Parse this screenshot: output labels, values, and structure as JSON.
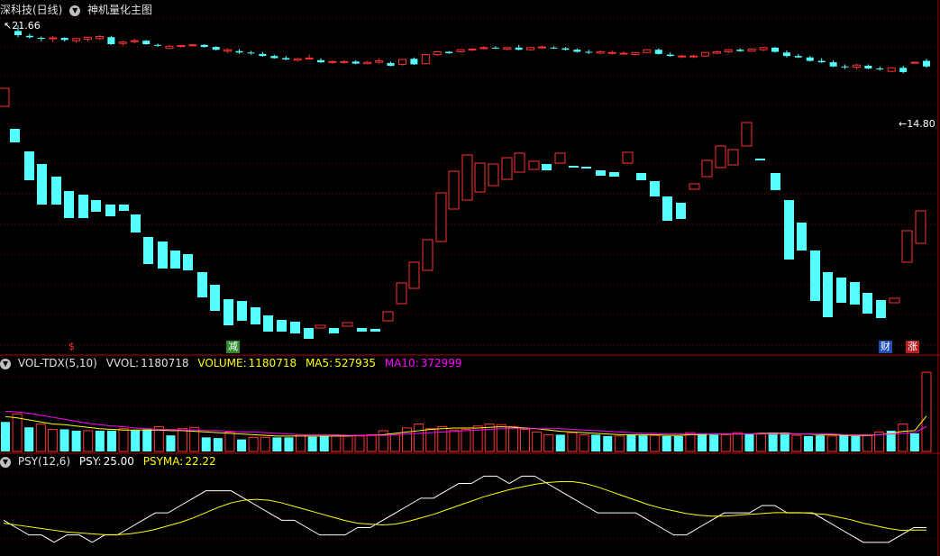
{
  "header": {
    "title": "深科技(日线)",
    "indicator": "神机量化主图"
  },
  "price_labels": {
    "high": "21.66",
    "low": "14.80"
  },
  "markers": {
    "m1": "$",
    "m2": "减",
    "m3": "财",
    "m4": "涨"
  },
  "vol_header": {
    "name": "VOL-TDX(5,10)",
    "vvol_label": "VVOL:",
    "vvol_value": "1180718",
    "volume_label": "VOLUME:",
    "volume_value": "1180718",
    "ma5_label": "MA5:",
    "ma5_value": "527935",
    "ma10_label": "MA10:",
    "ma10_value": "372999"
  },
  "psy_header": {
    "name": "PSY(12,6)",
    "psy_label": "PSY:",
    "psy_value": "25.00",
    "psyma_label": "PSYMA:",
    "psyma_value": "22.22"
  },
  "colors": {
    "up": "#ff3232",
    "down": "#54ffff",
    "grid": "#7a0000",
    "ma5": "#ffff00",
    "ma10": "#ff00ff",
    "psy": "#ffffff",
    "psyma": "#ffff00"
  },
  "chart_data": [
    {
      "type": "candlestick",
      "title": "深科技(日线)",
      "price_range": [
        14.8,
        21.66
      ],
      "candles": [
        [
          21.25,
          21.66,
          20.8,
          20.95
        ],
        [
          20.9,
          21.05,
          20.7,
          20.8
        ],
        [
          20.75,
          20.85,
          20.5,
          20.7
        ],
        [
          20.7,
          20.9,
          20.45,
          20.75
        ],
        [
          20.75,
          20.8,
          20.5,
          20.6
        ],
        [
          20.55,
          20.75,
          20.4,
          20.7
        ],
        [
          20.65,
          20.8,
          20.5,
          20.8
        ],
        [
          20.7,
          20.95,
          20.6,
          20.85
        ],
        [
          20.8,
          20.9,
          20.25,
          20.3
        ],
        [
          20.35,
          20.55,
          20.2,
          20.45
        ],
        [
          20.5,
          20.7,
          20.35,
          20.55
        ],
        [
          20.55,
          20.6,
          20.25,
          20.3
        ],
        [
          20.25,
          20.35,
          20.1,
          20.2
        ],
        [
          20.0,
          20.25,
          19.95,
          20.15
        ],
        [
          20.15,
          20.25,
          20.05,
          20.2
        ],
        [
          20.2,
          20.3,
          20.15,
          20.25
        ],
        [
          20.25,
          20.3,
          20.05,
          20.1
        ],
        [
          20.1,
          20.15,
          19.85,
          19.9
        ],
        [
          19.8,
          20.0,
          19.65,
          19.9
        ],
        [
          19.8,
          19.95,
          19.6,
          19.7
        ],
        [
          19.7,
          19.8,
          19.55,
          19.65
        ],
        [
          19.6,
          19.75,
          19.4,
          19.45
        ],
        [
          19.45,
          19.55,
          19.25,
          19.3
        ],
        [
          19.3,
          19.45,
          19.15,
          19.2
        ],
        [
          19.15,
          19.3,
          19.05,
          19.25
        ],
        [
          19.25,
          19.55,
          19.2,
          19.3
        ],
        [
          19.15,
          19.3,
          18.95,
          19.0
        ],
        [
          19.0,
          19.15,
          18.9,
          19.05
        ],
        [
          19.0,
          19.15,
          18.9,
          19.05
        ],
        [
          19.05,
          19.15,
          18.85,
          18.9
        ],
        [
          18.9,
          19.1,
          18.85,
          19.0
        ],
        [
          19.0,
          19.3,
          18.9,
          19.1
        ],
        [
          18.95,
          19.05,
          18.7,
          18.75
        ],
        [
          18.85,
          19.25,
          18.75,
          19.2
        ],
        [
          19.25,
          19.35,
          18.8,
          18.85
        ],
        [
          18.9,
          19.6,
          18.85,
          19.55
        ],
        [
          19.55,
          19.8,
          19.45,
          19.75
        ],
        [
          19.75,
          19.8,
          19.6,
          19.65
        ],
        [
          19.75,
          19.95,
          19.7,
          19.9
        ],
        [
          19.9,
          20.0,
          19.8,
          19.95
        ],
        [
          20.0,
          20.15,
          19.9,
          20.05
        ],
        [
          20.05,
          20.15,
          19.95,
          20.0
        ],
        [
          19.95,
          20.1,
          19.85,
          20.05
        ],
        [
          20.05,
          20.25,
          19.85,
          19.9
        ],
        [
          19.9,
          20.1,
          19.85,
          20.05
        ],
        [
          20.05,
          20.2,
          19.95,
          20.1
        ],
        [
          20.05,
          20.15,
          19.95,
          20.0
        ],
        [
          20.0,
          20.1,
          19.85,
          19.9
        ],
        [
          19.9,
          20.0,
          19.7,
          19.75
        ],
        [
          19.75,
          19.9,
          19.6,
          19.7
        ],
        [
          19.65,
          19.85,
          19.6,
          19.75
        ],
        [
          19.7,
          19.85,
          19.55,
          19.7
        ],
        [
          19.6,
          19.8,
          19.55,
          19.65
        ],
        [
          19.55,
          19.75,
          19.5,
          19.7
        ],
        [
          19.7,
          19.95,
          19.65,
          19.9
        ],
        [
          19.9,
          20.0,
          19.55,
          19.6
        ],
        [
          19.55,
          19.7,
          19.4,
          19.45
        ],
        [
          19.4,
          19.55,
          19.3,
          19.45
        ],
        [
          19.4,
          19.55,
          19.3,
          19.45
        ],
        [
          19.45,
          19.75,
          19.4,
          19.7
        ],
        [
          19.65,
          19.85,
          19.6,
          19.75
        ],
        [
          19.75,
          19.95,
          19.65,
          19.9
        ],
        [
          19.9,
          20.0,
          19.75,
          19.8
        ],
        [
          19.8,
          20.0,
          19.75,
          19.95
        ],
        [
          19.9,
          20.1,
          19.8,
          20.05
        ],
        [
          20.05,
          20.1,
          19.7,
          19.75
        ],
        [
          19.7,
          19.85,
          19.35,
          19.45
        ],
        [
          19.45,
          19.6,
          19.3,
          19.35
        ],
        [
          19.35,
          19.45,
          19.05,
          19.1
        ],
        [
          19.1,
          19.3,
          18.95,
          19.0
        ],
        [
          19.0,
          19.15,
          18.65,
          18.7
        ],
        [
          18.7,
          18.85,
          18.5,
          18.65
        ],
        [
          18.65,
          18.9,
          18.5,
          18.8
        ],
        [
          18.75,
          18.85,
          18.5,
          18.55
        ],
        [
          18.55,
          18.7,
          18.4,
          18.5
        ],
        [
          18.35,
          18.65,
          18.3,
          18.6
        ],
        [
          18.6,
          18.75,
          18.2,
          18.3
        ],
        [
          19.0,
          19.05,
          18.9,
          19.0
        ],
        [
          19.1,
          19.25,
          18.6,
          18.7
        ]
      ]
    },
    {
      "type": "bar",
      "title": "VOL-TDX(5,10)",
      "series": [
        {
          "name": "VOLUME",
          "values": [
            440000,
            560000,
            360000,
            410000,
            330000,
            330000,
            310000,
            310000,
            310000,
            310000,
            340000,
            320000,
            330000,
            370000,
            240000,
            340000,
            360000,
            210000,
            200000,
            290000,
            180000,
            210000,
            210000,
            210000,
            210000,
            250000,
            220000,
            230000,
            230000,
            230000,
            230000,
            250000,
            310000,
            250000,
            350000,
            410000,
            340000,
            370000,
            320000,
            330000,
            380000,
            410000,
            400000,
            370000,
            330000,
            290000,
            250000,
            250000,
            280000,
            250000,
            250000,
            230000,
            230000,
            250000,
            240000,
            240000,
            230000,
            230000,
            280000,
            270000,
            250000,
            250000,
            280000,
            260000,
            260000,
            280000,
            280000,
            240000,
            230000,
            240000,
            230000,
            250000,
            230000,
            240000,
            290000,
            310000,
            410000,
            270000,
            1180718
          ]
        },
        {
          "name": "MA5",
          "values": [
            520000,
            500000,
            470000,
            440000,
            410000,
            400000,
            380000,
            360000,
            340000,
            330000,
            320000,
            320000,
            320000,
            320000,
            310000,
            310000,
            300000,
            290000,
            280000,
            270000,
            260000,
            250000,
            240000,
            230000,
            230000,
            230000,
            230000,
            230000,
            230000,
            230000,
            240000,
            240000,
            250000,
            270000,
            290000,
            310000,
            330000,
            340000,
            350000,
            350000,
            350000,
            360000,
            370000,
            360000,
            350000,
            340000,
            320000,
            300000,
            290000,
            280000,
            270000,
            260000,
            250000,
            250000,
            250000,
            250000,
            240000,
            240000,
            250000,
            250000,
            260000,
            260000,
            260000,
            260000,
            270000,
            270000,
            270000,
            260000,
            260000,
            250000,
            250000,
            240000,
            240000,
            240000,
            250000,
            270000,
            300000,
            310000,
            527935
          ]
        },
        {
          "name": "MA10",
          "values": [
            600000,
            590000,
            570000,
            540000,
            510000,
            480000,
            450000,
            420000,
            400000,
            380000,
            370000,
            350000,
            340000,
            330000,
            330000,
            320000,
            320000,
            310000,
            310000,
            300000,
            290000,
            290000,
            280000,
            270000,
            260000,
            250000,
            250000,
            250000,
            250000,
            240000,
            240000,
            240000,
            240000,
            250000,
            260000,
            270000,
            280000,
            290000,
            300000,
            310000,
            320000,
            330000,
            340000,
            340000,
            340000,
            340000,
            340000,
            340000,
            330000,
            320000,
            310000,
            300000,
            290000,
            280000,
            270000,
            270000,
            260000,
            260000,
            260000,
            260000,
            260000,
            260000,
            260000,
            260000,
            260000,
            260000,
            260000,
            260000,
            260000,
            260000,
            260000,
            250000,
            250000,
            250000,
            250000,
            260000,
            270000,
            280000,
            372999
          ]
        }
      ]
    },
    {
      "type": "line",
      "title": "PSY(12,6)",
      "ylim": [
        0,
        100
      ],
      "series": [
        {
          "name": "PSY",
          "values": [
            33.33,
            25,
            16.67,
            16.67,
            8.33,
            16.67,
            16.67,
            8.33,
            16.67,
            16.67,
            25,
            33.33,
            41.67,
            41.67,
            50,
            58.33,
            66.67,
            66.67,
            66.67,
            58.33,
            50,
            41.67,
            33.33,
            33.33,
            25,
            16.67,
            16.67,
            16.67,
            25,
            25,
            33.33,
            41.67,
            50,
            58.33,
            58.33,
            66.67,
            75,
            75,
            83.33,
            83.33,
            75,
            83.33,
            83.33,
            75,
            66.67,
            58.33,
            50,
            41.67,
            41.67,
            41.67,
            41.67,
            33.33,
            25,
            16.67,
            16.67,
            25,
            33.33,
            41.67,
            41.67,
            41.67,
            50,
            50,
            41.67,
            41.67,
            41.67,
            33.33,
            25,
            16.67,
            8.33,
            8.33,
            8.33,
            16.67,
            25,
            25
          ]
        },
        {
          "name": "PSYMA",
          "values": [
            30,
            28,
            26,
            24,
            22,
            20,
            19,
            18,
            17,
            17,
            18,
            20,
            23,
            27,
            31,
            36,
            42,
            48,
            53,
            56,
            57,
            56,
            53,
            49,
            45,
            41,
            37,
            33,
            30,
            29,
            28,
            29,
            32,
            36,
            40,
            45,
            50,
            55,
            60,
            64,
            68,
            71,
            74,
            76,
            77,
            77,
            75,
            71,
            66,
            61,
            56,
            51,
            47,
            44,
            41,
            39,
            38,
            38,
            39,
            40,
            41,
            42,
            42,
            42,
            41,
            40,
            37,
            34,
            30,
            27,
            24,
            22,
            22.22,
            22.22
          ]
        }
      ]
    }
  ]
}
